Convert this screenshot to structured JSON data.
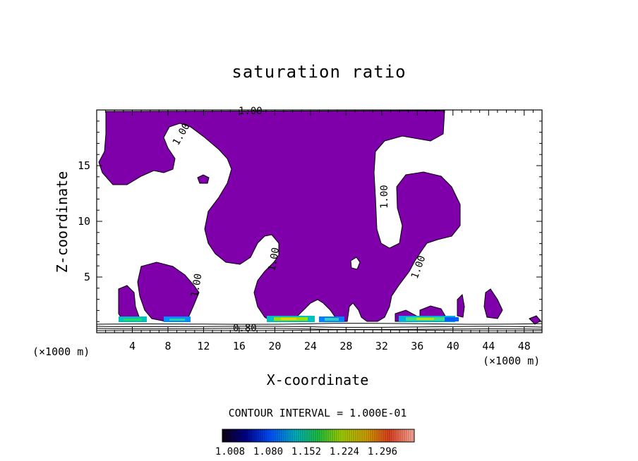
{
  "chart_data": {
    "type": "filled-contour",
    "title": "saturation ratio",
    "xlabel": "X-coordinate",
    "ylabel": "Z-coordinate",
    "x_unit_label": "(×1000 m)",
    "xlim": [
      0,
      50
    ],
    "ylim": [
      0,
      20
    ],
    "x_ticks": [
      4,
      8,
      12,
      16,
      20,
      24,
      28,
      32,
      36,
      40,
      44,
      48
    ],
    "y_ticks": [
      5,
      10,
      15
    ],
    "contour_interval_text": "CONTOUR INTERVAL = 1.000E-01",
    "colorbar_labels": [
      "1.008",
      "1.080",
      "1.152",
      "1.224",
      "1.296"
    ],
    "contour_labels": [
      "1.00",
      "1.00",
      "1.00",
      "1.00",
      "1.00",
      "1.00",
      "0.80"
    ],
    "fill_color": "#7f00aa",
    "supersaturated_fill_meaning": "saturation ratio ≥ 1.0"
  }
}
